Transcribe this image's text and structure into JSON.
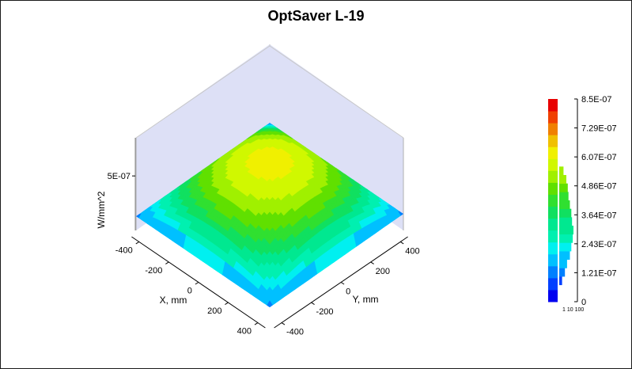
{
  "chart_data": {
    "type": "surface-3d",
    "title": "OptSaver L-19",
    "xlabel": "X, mm",
    "ylabel": "Y, mm",
    "zlabel": "W/mm^2",
    "x_ticks": [
      "-400",
      "-200",
      "0",
      "200",
      "400"
    ],
    "y_ticks": [
      "-400",
      "-200",
      "0",
      "200",
      "400"
    ],
    "z_ticks": [
      "5E-07"
    ],
    "xlim": [
      -450,
      450
    ],
    "ylim": [
      -450,
      450
    ],
    "zlim": [
      0,
      8.5e-07
    ],
    "surface": {
      "peak_value": 6.2e-07,
      "peak_x": 0,
      "peak_y": 0,
      "corner_value": 1.3e-07
    },
    "colorbar": {
      "tick_labels": [
        "8.5E-07",
        "7.29E-07",
        "6.07E-07",
        "4.86E-07",
        "3.64E-07",
        "2.43E-07",
        "1.21E-07",
        "0"
      ],
      "min": 0,
      "max": 8.5e-07,
      "histogram_labels": [
        "1",
        "10",
        "100"
      ],
      "colors": [
        "#0000f0",
        "#0040ff",
        "#0080ff",
        "#00c0ff",
        "#00f0f0",
        "#00f0b0",
        "#00e890",
        "#10e060",
        "#30e030",
        "#60e000",
        "#a0f000",
        "#d0f800",
        "#f0f000",
        "#f0c000",
        "#f08000",
        "#f04000",
        "#e80000"
      ],
      "histogram": [
        0.0,
        0.0,
        0.2,
        0.4,
        0.55,
        0.75,
        0.85,
        0.95,
        1.0,
        0.9,
        0.85,
        0.75,
        0.65,
        0.6,
        0.5,
        0.3,
        0.0,
        0.0,
        0.0,
        0.0,
        0.0,
        0.0,
        0.0,
        0.0
      ]
    }
  }
}
